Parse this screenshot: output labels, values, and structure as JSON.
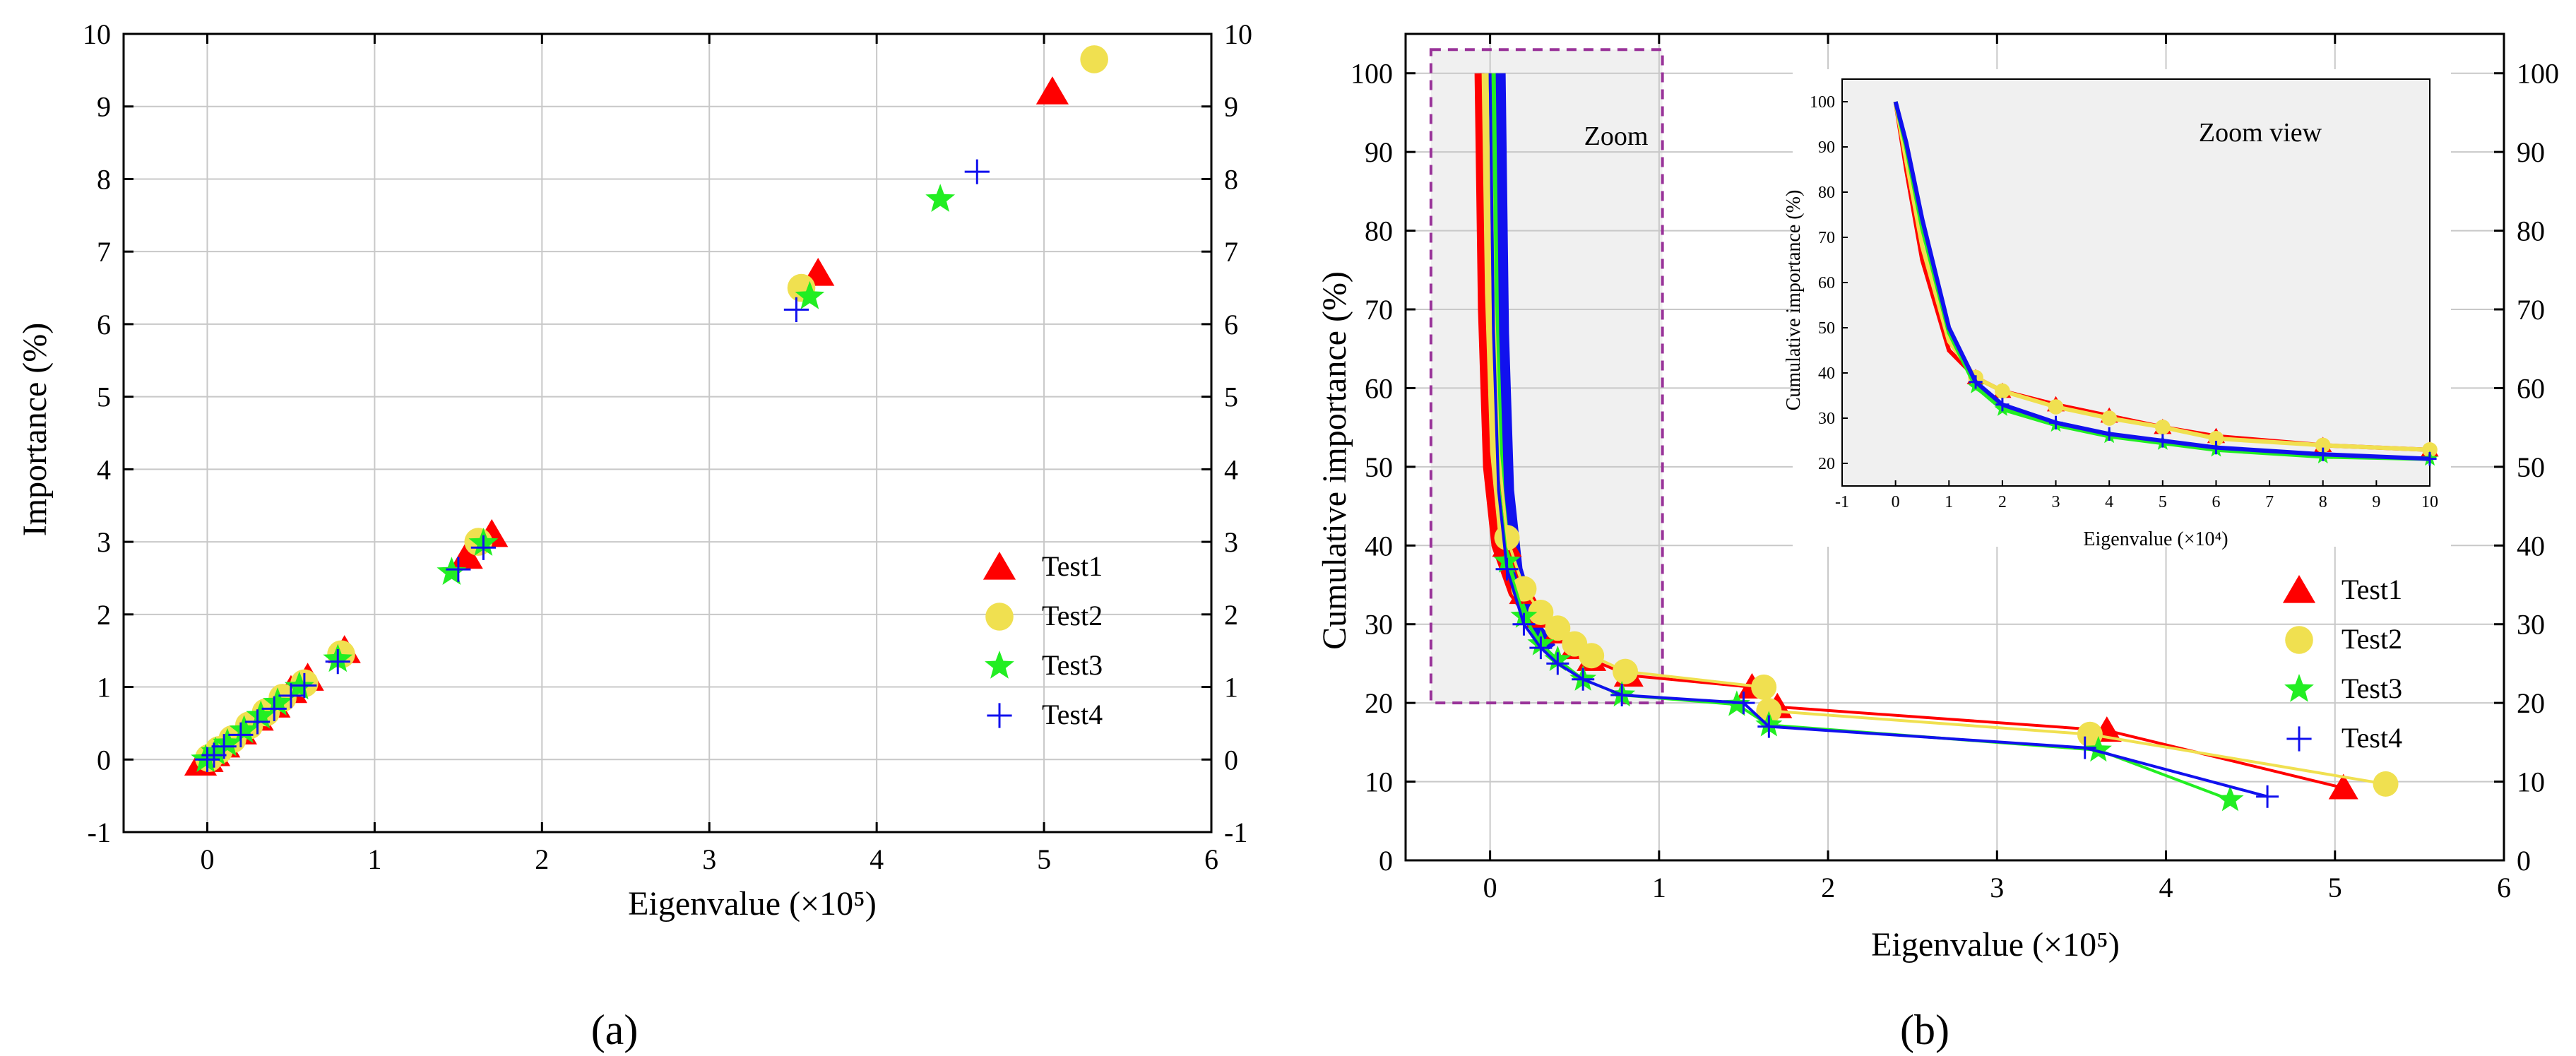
{
  "colors": {
    "Test1": "#ff0000",
    "Test2": "#f0e050",
    "Test3": "#22ee22",
    "Test4": "#1111ee",
    "zoom_box": "#993399",
    "shade": "#f0f0f0",
    "grid": "#c8c8c8"
  },
  "chart_data": [
    {
      "type": "scatter",
      "panel_label": "(a)",
      "xlabel": "Eigenvalue (×10⁵)",
      "ylabel": "Importance (%)",
      "xlim": [
        -0.5,
        6
      ],
      "ylim": [
        -1,
        10
      ],
      "xticks": [
        0,
        1,
        2,
        3,
        4,
        5,
        6
      ],
      "yticks": [
        -1,
        0,
        1,
        2,
        3,
        4,
        5,
        6,
        7,
        8,
        9,
        10
      ],
      "grid": true,
      "legend_position": "bottom-right",
      "legend": [
        "Test1",
        "Test2",
        "Test3",
        "Test4"
      ],
      "series": [
        {
          "name": "Test1",
          "marker": "triangle",
          "points": [
            [
              5.05,
              9.2
            ],
            [
              3.65,
              6.7
            ],
            [
              1.7,
              3.1
            ],
            [
              1.55,
              2.8
            ],
            [
              0.82,
              1.5
            ],
            [
              0.6,
              1.12
            ],
            [
              0.5,
              0.95
            ],
            [
              0.4,
              0.75
            ],
            [
              0.3,
              0.57
            ],
            [
              0.2,
              0.38
            ],
            [
              0.1,
              0.2
            ],
            [
              0.04,
              0.08
            ],
            [
              0.0,
              0.0
            ],
            [
              -0.04,
              -0.05
            ]
          ]
        },
        {
          "name": "Test2",
          "marker": "circle",
          "points": [
            [
              5.3,
              9.65
            ],
            [
              3.55,
              6.5
            ],
            [
              1.62,
              3.0
            ],
            [
              0.8,
              1.45
            ],
            [
              0.58,
              1.05
            ],
            [
              0.45,
              0.85
            ],
            [
              0.35,
              0.65
            ],
            [
              0.25,
              0.47
            ],
            [
              0.15,
              0.28
            ],
            [
              0.07,
              0.13
            ],
            [
              0.01,
              0.02
            ]
          ]
        },
        {
          "name": "Test3",
          "marker": "star",
          "points": [
            [
              4.38,
              7.72
            ],
            [
              3.6,
              6.38
            ],
            [
              1.65,
              2.98
            ],
            [
              1.46,
              2.58
            ],
            [
              0.78,
              1.38
            ],
            [
              0.55,
              1.0
            ],
            [
              0.42,
              0.78
            ],
            [
              0.32,
              0.6
            ],
            [
              0.22,
              0.4
            ],
            [
              0.12,
              0.22
            ],
            [
              0.05,
              0.1
            ],
            [
              -0.01,
              0.0
            ]
          ]
        },
        {
          "name": "Test4",
          "marker": "plus",
          "points": [
            [
              4.6,
              8.1
            ],
            [
              3.52,
              6.2
            ],
            [
              1.65,
              2.92
            ],
            [
              1.5,
              2.62
            ],
            [
              0.78,
              1.35
            ],
            [
              0.58,
              1.02
            ],
            [
              0.5,
              0.88
            ],
            [
              0.4,
              0.7
            ],
            [
              0.3,
              0.52
            ],
            [
              0.2,
              0.34
            ],
            [
              0.1,
              0.18
            ],
            [
              0.04,
              0.06
            ],
            [
              0.0,
              0.0
            ]
          ]
        }
      ]
    },
    {
      "type": "line",
      "panel_label": "(b)",
      "xlabel": "Eigenvalue (×10⁵)",
      "ylabel": "Cumulative importance (%)",
      "xlim": [
        -0.5,
        6
      ],
      "ylim": [
        0,
        105
      ],
      "xticks": [
        0,
        1,
        2,
        3,
        4,
        5,
        6
      ],
      "yticks": [
        0,
        10,
        20,
        30,
        40,
        50,
        60,
        70,
        80,
        90,
        100
      ],
      "grid": true,
      "legend_position": "bottom-right",
      "legend": [
        "Test1",
        "Test2",
        "Test3",
        "Test4"
      ],
      "zoom_box": {
        "label": "Zoom",
        "x": [
          -0.35,
          1.02
        ],
        "y": [
          20,
          103
        ]
      },
      "series": [
        {
          "name": "Test1",
          "marker": "triangle",
          "points": [
            [
              0,
              100
            ],
            [
              0.02,
              70
            ],
            [
              0.05,
              50
            ],
            [
              0.1,
              40
            ],
            [
              0.2,
              34
            ],
            [
              0.3,
              31
            ],
            [
              0.4,
              29
            ],
            [
              0.5,
              27
            ],
            [
              0.6,
              25.5
            ],
            [
              0.82,
              23.5
            ],
            [
              1.55,
              22
            ],
            [
              1.7,
              19.5
            ],
            [
              3.65,
              16.5
            ],
            [
              5.05,
              9.2
            ]
          ]
        },
        {
          "name": "Test2",
          "marker": "circle",
          "points": [
            [
              0,
              100
            ],
            [
              0.02,
              72
            ],
            [
              0.05,
              52
            ],
            [
              0.1,
              41
            ],
            [
              0.2,
              34.5
            ],
            [
              0.3,
              31.5
            ],
            [
              0.4,
              29.5
            ],
            [
              0.5,
              27.5
            ],
            [
              0.6,
              26
            ],
            [
              0.8,
              24
            ],
            [
              1.62,
              22
            ],
            [
              1.65,
              19
            ],
            [
              3.55,
              16
            ],
            [
              5.3,
              9.7
            ]
          ]
        },
        {
          "name": "Test3",
          "marker": "star",
          "points": [
            [
              0,
              100
            ],
            [
              0.02,
              68
            ],
            [
              0.05,
              48
            ],
            [
              0.1,
              38
            ],
            [
              0.2,
              31
            ],
            [
              0.3,
              27.5
            ],
            [
              0.4,
              25.5
            ],
            [
              0.55,
              23
            ],
            [
              0.78,
              21
            ],
            [
              1.46,
              19.8
            ],
            [
              1.65,
              17.2
            ],
            [
              3.6,
              14
            ],
            [
              4.38,
              7.7
            ]
          ]
        },
        {
          "name": "Test4",
          "marker": "plus",
          "points": [
            [
              0,
              100
            ],
            [
              0.02,
              67
            ],
            [
              0.05,
              47
            ],
            [
              0.1,
              37
            ],
            [
              0.2,
              30
            ],
            [
              0.3,
              27
            ],
            [
              0.4,
              25
            ],
            [
              0.55,
              23
            ],
            [
              0.78,
              21
            ],
            [
              1.5,
              20
            ],
            [
              1.65,
              17
            ],
            [
              3.52,
              14.3
            ],
            [
              4.6,
              8.1
            ]
          ]
        }
      ],
      "inset": {
        "title": "Zoom view",
        "xlabel": "Eigenvalue (×10⁴)",
        "ylabel": "Cumulative importance (%)",
        "xlim": [
          -1,
          10
        ],
        "ylim": [
          15,
          105
        ],
        "xticks": [
          -1,
          0,
          1,
          2,
          3,
          4,
          5,
          6,
          7,
          8,
          9,
          10
        ],
        "yticks": [
          20,
          30,
          40,
          50,
          60,
          70,
          80,
          90,
          100
        ],
        "series": [
          {
            "name": "Test1",
            "points": [
              [
                0,
                100
              ],
              [
                0.2,
                85
              ],
              [
                0.5,
                65
              ],
              [
                1.0,
                45
              ],
              [
                1.5,
                39
              ],
              [
                2.0,
                36
              ],
              [
                3.0,
                33
              ],
              [
                4.0,
                30.5
              ],
              [
                5.0,
                28
              ],
              [
                6.0,
                26
              ],
              [
                8.0,
                24
              ],
              [
                10,
                23
              ]
            ]
          },
          {
            "name": "Test2",
            "points": [
              [
                0,
                100
              ],
              [
                0.2,
                87
              ],
              [
                0.5,
                68
              ],
              [
                1.0,
                47
              ],
              [
                1.5,
                39
              ],
              [
                2.0,
                36
              ],
              [
                3.0,
                32.5
              ],
              [
                4.0,
                30
              ],
              [
                5.0,
                28
              ],
              [
                6.0,
                25.5
              ],
              [
                8.0,
                24
              ],
              [
                10,
                23
              ]
            ]
          },
          {
            "name": "Test3",
            "points": [
              [
                0,
                100
              ],
              [
                0.2,
                90
              ],
              [
                0.5,
                72
              ],
              [
                1.0,
                49
              ],
              [
                1.5,
                37
              ],
              [
                2.0,
                32
              ],
              [
                3.0,
                28.5
              ],
              [
                4.0,
                26
              ],
              [
                5.0,
                24.5
              ],
              [
                6.0,
                23
              ],
              [
                8.0,
                21.5
              ],
              [
                10,
                21
              ]
            ]
          },
          {
            "name": "Test4",
            "points": [
              [
                0,
                100
              ],
              [
                0.2,
                91
              ],
              [
                0.5,
                74
              ],
              [
                1.0,
                50
              ],
              [
                1.5,
                38
              ],
              [
                2.0,
                33
              ],
              [
                3.0,
                29
              ],
              [
                4.0,
                26.5
              ],
              [
                5.0,
                25
              ],
              [
                6.0,
                23.5
              ],
              [
                8.0,
                22
              ],
              [
                10,
                21
              ]
            ]
          }
        ]
      }
    }
  ]
}
